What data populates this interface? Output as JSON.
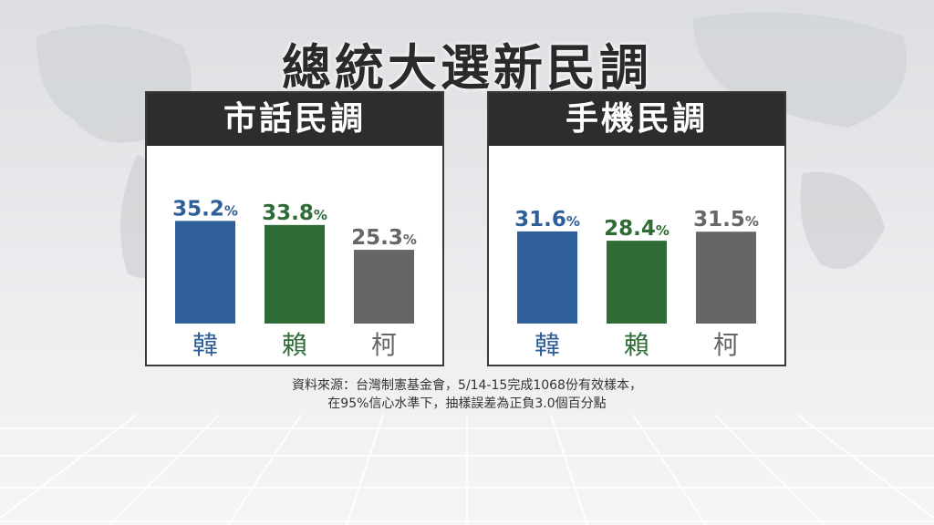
{
  "title": "總統大選新民調",
  "colors": {
    "blue": "#2e5f99",
    "green": "#2f6b35",
    "gray": "#666666"
  },
  "chart_data": [
    {
      "type": "bar",
      "title": "市話民調",
      "categories": [
        "韓",
        "賴",
        "柯"
      ],
      "values": [
        35.2,
        33.8,
        25.3
      ],
      "value_labels": [
        "35.2",
        "33.8",
        "25.3"
      ],
      "unit": "%",
      "bar_colors": [
        "#2e5f99",
        "#2f6b35",
        "#666666"
      ],
      "ylim": [
        0,
        45
      ],
      "grid": false
    },
    {
      "type": "bar",
      "title": "手機民調",
      "categories": [
        "韓",
        "賴",
        "柯"
      ],
      "values": [
        31.6,
        28.4,
        31.5
      ],
      "value_labels": [
        "31.6",
        "28.4",
        "31.5"
      ],
      "unit": "%",
      "bar_colors": [
        "#2e5f99",
        "#2f6b35",
        "#666666"
      ],
      "ylim": [
        0,
        45
      ],
      "grid": false
    }
  ],
  "source": {
    "line1": "資料來源：台灣制憲基金會，5/14-15完成1068份有效樣本，",
    "line2": "在95%信心水準下，抽樣誤差為正負3.0個百分點"
  }
}
